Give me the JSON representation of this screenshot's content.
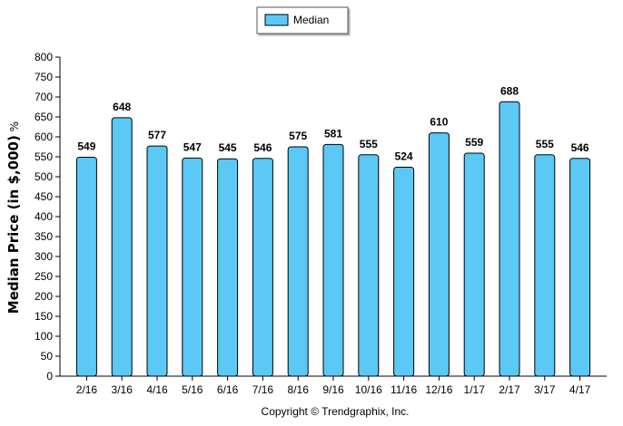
{
  "chart_data": {
    "type": "bar",
    "title": "",
    "xlabel": "",
    "ylabel": "Median Price (in $,000)",
    "ylabel_suffix": "%",
    "ylim": [
      0,
      800
    ],
    "yticks": [
      0,
      50,
      100,
      150,
      200,
      250,
      300,
      350,
      400,
      450,
      500,
      550,
      600,
      650,
      700,
      750,
      800
    ],
    "grid": false,
    "legend_position": "top-center",
    "categories": [
      "2/16",
      "3/16",
      "4/16",
      "5/16",
      "6/16",
      "7/16",
      "8/16",
      "9/16",
      "10/16",
      "11/16",
      "12/16",
      "1/17",
      "2/17",
      "3/17",
      "4/17"
    ],
    "series": [
      {
        "name": "Median",
        "color": "#5bc8f5",
        "values": [
          549,
          648,
          577,
          547,
          545,
          546,
          575,
          581,
          555,
          524,
          610,
          559,
          688,
          555,
          546
        ]
      }
    ]
  },
  "footer": {
    "copyright": "Copyright © Trendgraphix, Inc."
  }
}
